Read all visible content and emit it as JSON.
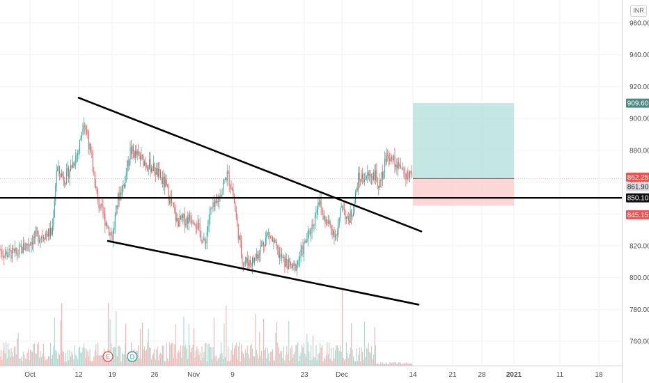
{
  "currency_badge": "INR",
  "chart_data": {
    "type": "candlestick",
    "y_axis": {
      "ticks": [
        "960.00",
        "940.00",
        "920.00",
        "900.00",
        "880.00",
        "860.00",
        "840.00",
        "820.00",
        "800.00",
        "780.00",
        "760.00"
      ],
      "tick_values": [
        960,
        940,
        920,
        900,
        880,
        860,
        840,
        820,
        800,
        780,
        760
      ],
      "range": [
        745,
        975
      ]
    },
    "x_axis": {
      "ticks": [
        "Oct",
        "12",
        "19",
        "26",
        "Nov",
        "9",
        "23",
        "Dec",
        "14",
        "21",
        "28",
        "2021",
        "11",
        "18"
      ],
      "bold_ticks": [
        "2021"
      ]
    },
    "price_tags": [
      {
        "label": "909.60",
        "value": 909.6,
        "bg": "#4b8a80",
        "fg": "#ffffff"
      },
      {
        "label": "862.25",
        "value": 862.25,
        "bg": "#ef5350",
        "fg": "#ffffff"
      },
      {
        "label": "861.90",
        "value": 861.9,
        "bg": "#d9dbe0",
        "fg": "#222222"
      },
      {
        "label": "850.10",
        "value": 850.1,
        "bg": "#111111",
        "fg": "#ffffff"
      },
      {
        "label": "845.15",
        "value": 845.15,
        "bg": "#ef5350",
        "fg": "#ffffff"
      }
    ],
    "horizontal_line": {
      "value": 850.1,
      "color": "#000000"
    },
    "wedge_upper": [
      {
        "date": "2020-10-12",
        "y": 913
      },
      {
        "date": "2020-12-14",
        "y": 829
      }
    ],
    "wedge_lower": [
      {
        "date": "2020-10-19",
        "y": 823
      },
      {
        "date": "2020-12-14",
        "y": 783
      }
    ],
    "position_tool": {
      "entry": 862.25,
      "target": 909.6,
      "stop": 845.15,
      "start": "2020-12-14",
      "end": "2021-01-01",
      "profit_color": "#b2dfdb",
      "loss_color": "#fbd0d0"
    },
    "event_markers": [
      {
        "label": "E",
        "date": "2020-10-19",
        "color": "#ef5350"
      },
      {
        "label": "D",
        "date": "2020-10-23",
        "color": "#26a69a"
      }
    ],
    "price_path": [
      [
        "2020-09-21",
        835
      ],
      [
        "2020-09-23",
        822
      ],
      [
        "2020-09-25",
        815
      ],
      [
        "2020-09-28",
        815
      ],
      [
        "2020-09-30",
        820
      ],
      [
        "2020-10-02",
        825
      ],
      [
        "2020-10-05",
        828
      ],
      [
        "2020-10-06",
        828
      ],
      [
        "2020-10-07",
        868
      ],
      [
        "2020-10-09",
        862
      ],
      [
        "2020-10-12",
        880
      ],
      [
        "2020-10-13",
        900
      ],
      [
        "2020-10-14",
        887
      ],
      [
        "2020-10-16",
        848
      ],
      [
        "2020-10-19",
        825
      ],
      [
        "2020-10-20",
        850
      ],
      [
        "2020-10-21",
        860
      ],
      [
        "2020-10-22",
        880
      ],
      [
        "2020-10-26",
        868
      ],
      [
        "2020-10-28",
        858
      ],
      [
        "2020-10-29",
        847
      ],
      [
        "2020-10-30",
        835
      ],
      [
        "2020-11-02",
        838
      ],
      [
        "2020-11-03",
        830
      ],
      [
        "2020-11-04",
        820
      ],
      [
        "2020-11-05",
        842
      ],
      [
        "2020-11-06",
        845
      ],
      [
        "2020-11-08",
        865
      ],
      [
        "2020-11-09",
        855
      ],
      [
        "2020-11-10",
        830
      ],
      [
        "2020-11-11",
        810
      ],
      [
        "2020-11-13",
        810
      ],
      [
        "2020-11-16",
        828
      ],
      [
        "2020-11-18",
        815
      ],
      [
        "2020-11-19",
        810
      ],
      [
        "2020-11-20",
        808
      ],
      [
        "2020-11-21",
        805
      ],
      [
        "2020-11-23",
        820
      ],
      [
        "2020-11-25",
        835
      ],
      [
        "2020-11-26",
        850
      ],
      [
        "2020-11-27",
        838
      ],
      [
        "2020-11-30",
        826
      ],
      [
        "2020-12-01",
        848
      ],
      [
        "2020-12-02",
        835
      ],
      [
        "2020-12-03",
        842
      ],
      [
        "2020-12-04",
        862
      ],
      [
        "2020-12-07",
        865
      ],
      [
        "2020-12-08",
        858
      ],
      [
        "2020-12-09",
        875
      ],
      [
        "2020-12-10",
        878
      ],
      [
        "2020-12-11",
        870
      ],
      [
        "2020-12-14",
        862
      ]
    ],
    "grid": true
  }
}
